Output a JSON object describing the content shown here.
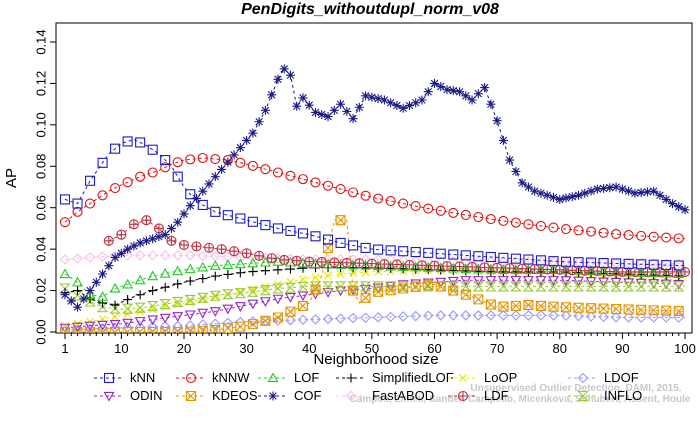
{
  "chart_data": {
    "type": "line",
    "title": "PenDigits_withoutdupl_norm_v08",
    "xlabel": "Neighborhood size",
    "ylabel": "AP",
    "xlim": [
      0,
      101
    ],
    "ylim": [
      0,
      0.148
    ],
    "xticks": [
      1,
      10,
      20,
      30,
      40,
      50,
      60,
      70,
      80,
      90,
      100
    ],
    "yticks": [
      0.0,
      0.02,
      0.04,
      0.06,
      0.08,
      0.1,
      0.12,
      0.14
    ],
    "ytick_labels": [
      "0.00",
      "0.02",
      "0.04",
      "0.06",
      "0.08",
      "0.10",
      "0.12",
      "0.14"
    ],
    "grid": false,
    "legend_position": "bottom",
    "watermark": [
      "Campos, Zimek, Sander, Campello, Micenkova, Schubert, Assent, Houle",
      "Unsupervised Outlier Detection. DAMI, 2015."
    ],
    "series": [
      {
        "name": "kNN",
        "color": "#1a1acc",
        "marker": "square",
        "points": [
          [
            1,
            0.064
          ],
          [
            3,
            0.062
          ],
          [
            5,
            0.073
          ],
          [
            8,
            0.086
          ],
          [
            10,
            0.091
          ],
          [
            12,
            0.093
          ],
          [
            14,
            0.09
          ],
          [
            16,
            0.086
          ],
          [
            18,
            0.08
          ],
          [
            20,
            0.07
          ],
          [
            22,
            0.063
          ],
          [
            25,
            0.058
          ],
          [
            30,
            0.054
          ],
          [
            35,
            0.05
          ],
          [
            40,
            0.047
          ],
          [
            45,
            0.043
          ],
          [
            50,
            0.04
          ],
          [
            55,
            0.039
          ],
          [
            60,
            0.038
          ],
          [
            70,
            0.036
          ],
          [
            80,
            0.034
          ],
          [
            90,
            0.033
          ],
          [
            100,
            0.032
          ]
        ]
      },
      {
        "name": "kNNW",
        "color": "#e01010",
        "marker": "circle",
        "points": [
          [
            1,
            0.053
          ],
          [
            3,
            0.058
          ],
          [
            5,
            0.062
          ],
          [
            8,
            0.068
          ],
          [
            10,
            0.071
          ],
          [
            13,
            0.075
          ],
          [
            16,
            0.078
          ],
          [
            18,
            0.081
          ],
          [
            20,
            0.083
          ],
          [
            23,
            0.084
          ],
          [
            27,
            0.083
          ],
          [
            30,
            0.081
          ],
          [
            35,
            0.077
          ],
          [
            40,
            0.073
          ],
          [
            45,
            0.069
          ],
          [
            50,
            0.065
          ],
          [
            55,
            0.062
          ],
          [
            60,
            0.059
          ],
          [
            70,
            0.054
          ],
          [
            80,
            0.05
          ],
          [
            90,
            0.047
          ],
          [
            100,
            0.045
          ]
        ]
      },
      {
        "name": "LOF",
        "color": "#22cc22",
        "marker": "triangle",
        "points": [
          [
            1,
            0.028
          ],
          [
            3,
            0.024
          ],
          [
            5,
            0.018
          ],
          [
            7,
            0.017
          ],
          [
            9,
            0.021
          ],
          [
            12,
            0.024
          ],
          [
            15,
            0.027
          ],
          [
            20,
            0.03
          ],
          [
            25,
            0.032
          ],
          [
            30,
            0.033
          ],
          [
            35,
            0.034
          ],
          [
            40,
            0.033
          ],
          [
            50,
            0.032
          ],
          [
            60,
            0.031
          ],
          [
            70,
            0.03
          ],
          [
            80,
            0.03
          ],
          [
            90,
            0.029
          ],
          [
            100,
            0.028
          ]
        ]
      },
      {
        "name": "SimplifiedLOF",
        "color": "#000000",
        "marker": "plus",
        "points": [
          [
            1,
            0.019
          ],
          [
            3,
            0.02
          ],
          [
            5,
            0.016
          ],
          [
            7,
            0.014
          ],
          [
            9,
            0.013
          ],
          [
            12,
            0.017
          ],
          [
            15,
            0.02
          ],
          [
            20,
            0.024
          ],
          [
            25,
            0.027
          ],
          [
            30,
            0.029
          ],
          [
            35,
            0.03
          ],
          [
            40,
            0.031
          ],
          [
            50,
            0.031
          ],
          [
            60,
            0.03
          ],
          [
            70,
            0.029
          ],
          [
            80,
            0.029
          ],
          [
            90,
            0.028
          ],
          [
            100,
            0.027
          ]
        ]
      },
      {
        "name": "LoOP",
        "color": "#e6e600",
        "marker": "cross",
        "points": [
          [
            1,
            0.003
          ],
          [
            5,
            0.005
          ],
          [
            10,
            0.008
          ],
          [
            15,
            0.011
          ],
          [
            20,
            0.014
          ],
          [
            25,
            0.017
          ],
          [
            30,
            0.02
          ],
          [
            35,
            0.023
          ],
          [
            40,
            0.026
          ],
          [
            45,
            0.028
          ],
          [
            50,
            0.029
          ],
          [
            60,
            0.03
          ],
          [
            70,
            0.029
          ],
          [
            80,
            0.028
          ],
          [
            90,
            0.027
          ],
          [
            100,
            0.026
          ]
        ]
      },
      {
        "name": "LDOF",
        "color": "#9999ff",
        "marker": "diamond",
        "points": [
          [
            1,
            0.001
          ],
          [
            10,
            0.002
          ],
          [
            20,
            0.003
          ],
          [
            30,
            0.005
          ],
          [
            40,
            0.006
          ],
          [
            50,
            0.007
          ],
          [
            60,
            0.008
          ],
          [
            70,
            0.008
          ],
          [
            80,
            0.008
          ],
          [
            90,
            0.007
          ],
          [
            100,
            0.007
          ]
        ]
      },
      {
        "name": "ODIN",
        "color": "#9922cc",
        "marker": "triangle-down",
        "points": [
          [
            1,
            0.002
          ],
          [
            5,
            0.003
          ],
          [
            10,
            0.004
          ],
          [
            15,
            0.006
          ],
          [
            20,
            0.008
          ],
          [
            25,
            0.01
          ],
          [
            30,
            0.013
          ],
          [
            35,
            0.016
          ],
          [
            40,
            0.018
          ],
          [
            45,
            0.02
          ],
          [
            50,
            0.021
          ],
          [
            55,
            0.023
          ],
          [
            60,
            0.024
          ],
          [
            65,
            0.025
          ],
          [
            70,
            0.025
          ],
          [
            80,
            0.025
          ],
          [
            90,
            0.024
          ],
          [
            100,
            0.023
          ]
        ]
      },
      {
        "name": "KDEOS",
        "color": "#e69500",
        "marker": "square-x",
        "points": [
          [
            1,
            0.0
          ],
          [
            10,
            0.0
          ],
          [
            20,
            0.0
          ],
          [
            25,
            0.001
          ],
          [
            30,
            0.003
          ],
          [
            35,
            0.007
          ],
          [
            40,
            0.014
          ],
          [
            42,
            0.027
          ],
          [
            44,
            0.054
          ],
          [
            46,
            0.054
          ],
          [
            47,
            0.02
          ],
          [
            48,
            0.014
          ],
          [
            50,
            0.019
          ],
          [
            55,
            0.021
          ],
          [
            60,
            0.023
          ],
          [
            63,
            0.02
          ],
          [
            66,
            0.017
          ],
          [
            70,
            0.012
          ],
          [
            75,
            0.013
          ],
          [
            80,
            0.012
          ],
          [
            90,
            0.011
          ],
          [
            100,
            0.01
          ]
        ]
      },
      {
        "name": "COF",
        "color": "#1a1a88",
        "marker": "star",
        "points": [
          [
            1,
            0.018
          ],
          [
            3,
            0.012
          ],
          [
            5,
            0.02
          ],
          [
            7,
            0.028
          ],
          [
            9,
            0.036
          ],
          [
            11,
            0.04
          ],
          [
            13,
            0.043
          ],
          [
            15,
            0.045
          ],
          [
            17,
            0.047
          ],
          [
            19,
            0.053
          ],
          [
            21,
            0.061
          ],
          [
            23,
            0.068
          ],
          [
            25,
            0.075
          ],
          [
            27,
            0.082
          ],
          [
            29,
            0.089
          ],
          [
            31,
            0.096
          ],
          [
            33,
            0.107
          ],
          [
            35,
            0.122
          ],
          [
            36,
            0.127
          ],
          [
            37,
            0.124
          ],
          [
            38,
            0.109
          ],
          [
            39,
            0.113
          ],
          [
            41,
            0.106
          ],
          [
            43,
            0.104
          ],
          [
            45,
            0.11
          ],
          [
            47,
            0.103
          ],
          [
            49,
            0.114
          ],
          [
            52,
            0.112
          ],
          [
            55,
            0.108
          ],
          [
            58,
            0.112
          ],
          [
            60,
            0.12
          ],
          [
            62,
            0.117
          ],
          [
            64,
            0.116
          ],
          [
            66,
            0.112
          ],
          [
            68,
            0.118
          ],
          [
            70,
            0.102
          ],
          [
            72,
            0.083
          ],
          [
            74,
            0.072
          ],
          [
            76,
            0.068
          ],
          [
            78,
            0.066
          ],
          [
            80,
            0.064
          ],
          [
            83,
            0.066
          ],
          [
            86,
            0.069
          ],
          [
            89,
            0.07
          ],
          [
            92,
            0.067
          ],
          [
            95,
            0.068
          ],
          [
            98,
            0.062
          ],
          [
            100,
            0.059
          ]
        ]
      },
      {
        "name": "FastABOD",
        "color": "#ffbbee",
        "marker": "diamond",
        "points": [
          [
            1,
            0.035
          ],
          [
            5,
            0.036
          ],
          [
            10,
            0.037
          ],
          [
            15,
            0.037
          ],
          [
            20,
            0.037
          ],
          [
            30,
            0.036
          ],
          [
            40,
            0.035
          ],
          [
            50,
            0.035
          ],
          [
            60,
            0.034
          ],
          [
            70,
            0.034
          ],
          [
            80,
            0.034
          ],
          [
            90,
            0.033
          ],
          [
            100,
            0.033
          ]
        ]
      },
      {
        "name": "LDF",
        "color": "#bb3344",
        "marker": "circle-plus",
        "points": [
          [
            8,
            0.044
          ],
          [
            10,
            0.047
          ],
          [
            12,
            0.052
          ],
          [
            14,
            0.054
          ],
          [
            16,
            0.05
          ],
          [
            18,
            0.044
          ],
          [
            20,
            0.042
          ],
          [
            23,
            0.041
          ],
          [
            26,
            0.04
          ],
          [
            30,
            0.038
          ],
          [
            35,
            0.035
          ],
          [
            40,
            0.034
          ],
          [
            50,
            0.033
          ],
          [
            60,
            0.032
          ],
          [
            70,
            0.031
          ],
          [
            80,
            0.03
          ],
          [
            90,
            0.029
          ],
          [
            100,
            0.029
          ]
        ]
      },
      {
        "name": "INFLO",
        "color": "#99cc33",
        "marker": "hourglass",
        "points": [
          [
            1,
            0.021
          ],
          [
            4,
            0.016
          ],
          [
            7,
            0.012
          ],
          [
            10,
            0.011
          ],
          [
            14,
            0.012
          ],
          [
            18,
            0.014
          ],
          [
            22,
            0.016
          ],
          [
            26,
            0.018
          ],
          [
            30,
            0.019
          ],
          [
            35,
            0.021
          ],
          [
            40,
            0.022
          ],
          [
            50,
            0.022
          ],
          [
            60,
            0.022
          ],
          [
            70,
            0.022
          ],
          [
            80,
            0.022
          ],
          [
            90,
            0.022
          ],
          [
            100,
            0.022
          ]
        ]
      }
    ]
  }
}
